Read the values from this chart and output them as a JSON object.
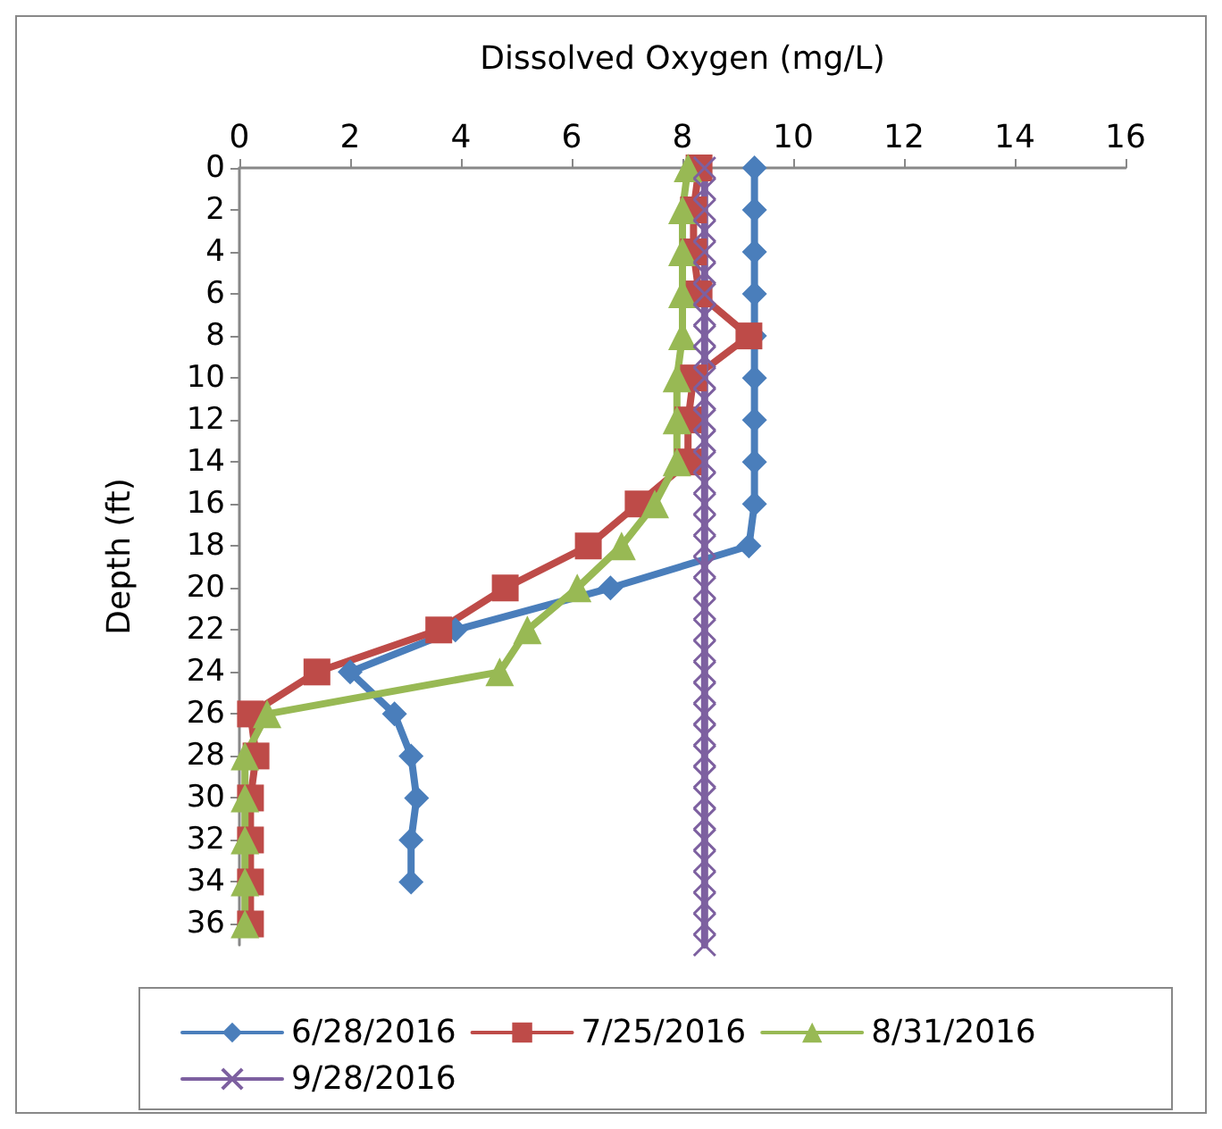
{
  "chart_data": {
    "type": "line",
    "xlabel": "Dissolved Oxygen (mg/L)",
    "ylabel": "Depth (ft)",
    "xlim": [
      0,
      16
    ],
    "xticks": [
      0,
      2,
      4,
      6,
      8,
      10,
      12,
      14,
      16
    ],
    "ylim": [
      37,
      0
    ],
    "yticks": [
      0,
      2,
      4,
      6,
      8,
      10,
      12,
      14,
      16,
      18,
      20,
      22,
      24,
      26,
      28,
      30,
      32,
      34,
      36
    ],
    "grid": false,
    "legend": "bottom",
    "series": [
      {
        "name": "6/28/2016",
        "color": "#4a7ebb",
        "marker": "diamond",
        "x": [
          9.3,
          9.3,
          9.3,
          9.3,
          9.3,
          9.3,
          9.3,
          9.3,
          9.3,
          9.2,
          6.7,
          3.9,
          2.0,
          2.8,
          3.1,
          3.2,
          3.1,
          3.1
        ],
        "values": [
          0,
          2,
          4,
          6,
          8,
          10,
          12,
          14,
          16,
          18,
          20,
          22,
          24,
          26,
          28,
          30,
          32,
          34
        ]
      },
      {
        "name": "7/25/2016",
        "color": "#be4b48",
        "marker": "square",
        "x": [
          8.3,
          8.2,
          8.2,
          8.3,
          9.2,
          8.2,
          8.1,
          8.1,
          7.2,
          6.3,
          4.8,
          3.6,
          1.4,
          0.2,
          0.3,
          0.2,
          0.2,
          0.2,
          0.2
        ],
        "values": [
          0,
          2,
          4,
          6,
          8,
          10,
          12,
          14,
          16,
          18,
          20,
          22,
          24,
          26,
          28,
          30,
          32,
          34,
          36
        ]
      },
      {
        "name": "8/31/2016",
        "color": "#98b954",
        "marker": "triangle",
        "x": [
          8.1,
          8.0,
          8.0,
          8.0,
          8.0,
          7.9,
          7.9,
          7.9,
          7.5,
          6.9,
          6.1,
          5.2,
          4.7,
          0.5,
          0.1,
          0.1,
          0.1,
          0.1,
          0.1
        ],
        "values": [
          0,
          2,
          4,
          6,
          8,
          10,
          12,
          14,
          16,
          18,
          20,
          22,
          24,
          26,
          28,
          30,
          32,
          34,
          36
        ]
      },
      {
        "name": "9/28/2016",
        "color": "#7d60a0",
        "marker": "cross",
        "x": [
          8.4,
          8.4,
          8.4,
          8.4,
          8.4,
          8.4,
          8.4,
          8.4,
          8.4,
          8.4,
          8.4,
          8.4,
          8.4,
          8.4,
          8.4,
          8.4,
          8.4,
          8.4,
          8.4,
          8.4,
          8.4,
          8.4,
          8.4,
          8.4,
          8.4,
          8.4,
          8.4,
          8.4,
          8.4,
          8.4,
          8.4,
          8.4,
          8.4,
          8.4,
          8.4,
          8.4,
          8.4,
          8.4
        ],
        "values": [
          0,
          1,
          2,
          3,
          4,
          5,
          6,
          7,
          8,
          9,
          10,
          11,
          12,
          13,
          14,
          15,
          16,
          17,
          18,
          19,
          20,
          21,
          22,
          23,
          24,
          25,
          26,
          27,
          28,
          29,
          30,
          31,
          32,
          33,
          34,
          35,
          36,
          37
        ]
      }
    ]
  }
}
